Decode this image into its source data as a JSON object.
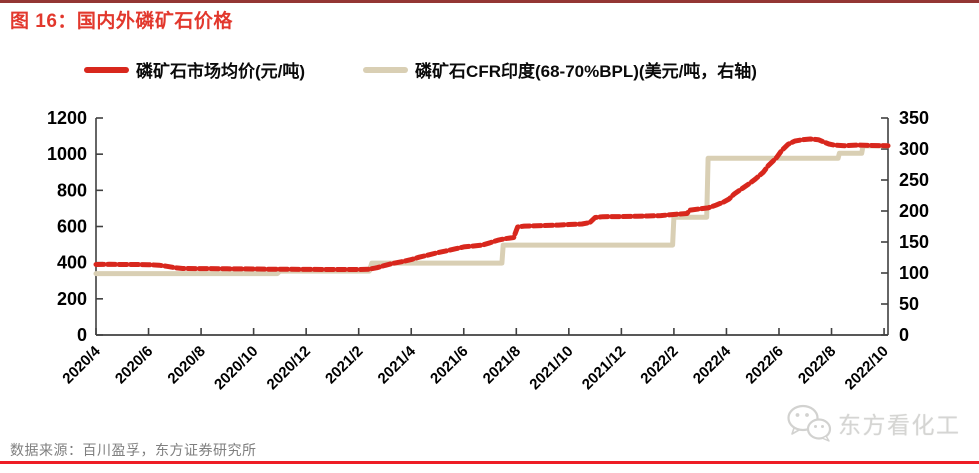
{
  "page": {
    "source": "数据来源：百川盈孚，东方证券研究所",
    "watermark_text": "东方看化工"
  },
  "colors": {
    "title_red": "#e2382d",
    "border_top": "#943634",
    "border_bottom": "#ee1c25",
    "series_red": "#d8271d",
    "series_beige": "#d9cfb4",
    "axis_line": "#404040",
    "axis_text": "#000000",
    "source_gray": "#7f7f7f",
    "watermark_gray": "#d5d5d3"
  },
  "chart_data": {
    "type": "line",
    "title": "图 16：国内外磷矿石价格",
    "legend_position": "top",
    "grid": false,
    "x_unit": "months_since_2020_04",
    "x_axis": {
      "range": [
        0,
        30.15
      ],
      "tick_months": [
        0,
        2,
        4,
        6,
        8,
        10,
        12,
        14,
        16,
        18,
        20,
        22,
        24,
        26,
        28,
        30
      ],
      "tick_labels": [
        "2020/4",
        "2020/6",
        "2020/8",
        "2020/10",
        "2020/12",
        "2021/2",
        "2021/4",
        "2021/6",
        "2021/8",
        "2021/10",
        "2021/12",
        "2022/2",
        "2022/4",
        "2022/6",
        "2022/8",
        "2022/10"
      ]
    },
    "left_axis": {
      "range": [
        0,
        1200
      ],
      "ticks": [
        0,
        200,
        400,
        600,
        800,
        1000,
        1200
      ]
    },
    "right_axis": {
      "range": [
        0,
        350
      ],
      "ticks": [
        0,
        50,
        100,
        150,
        200,
        250,
        300,
        350
      ]
    },
    "series": [
      {
        "name": "磷矿石市场均价(元/吨)",
        "axis": "left",
        "color": "#d8271d",
        "style": "dense-dots",
        "dash": "8 3.5",
        "width": 5,
        "points": [
          [
            0,
            390
          ],
          [
            0.5,
            391
          ],
          [
            1,
            390
          ],
          [
            1.5,
            390
          ],
          [
            2,
            389
          ],
          [
            2.4,
            386
          ],
          [
            2.7,
            380
          ],
          [
            3,
            372
          ],
          [
            3.3,
            368
          ],
          [
            4,
            367
          ],
          [
            5,
            366
          ],
          [
            6,
            365
          ],
          [
            6.5,
            364
          ],
          [
            7,
            364
          ],
          [
            8,
            363
          ],
          [
            9,
            362
          ],
          [
            10,
            362
          ],
          [
            10.4,
            364
          ],
          [
            10.7,
            372
          ],
          [
            11,
            385
          ],
          [
            11.3,
            396
          ],
          [
            11.7,
            407
          ],
          [
            12,
            417
          ],
          [
            12.3,
            430
          ],
          [
            12.7,
            444
          ],
          [
            13,
            455
          ],
          [
            13.3,
            464
          ],
          [
            13.7,
            477
          ],
          [
            14,
            487
          ],
          [
            14.3,
            491
          ],
          [
            14.7,
            497
          ],
          [
            15,
            510
          ],
          [
            15.3,
            524
          ],
          [
            15.6,
            533
          ],
          [
            15.9,
            539
          ],
          [
            16.05,
            597
          ],
          [
            16.3,
            602
          ],
          [
            17,
            605
          ],
          [
            17.6,
            608
          ],
          [
            18,
            611
          ],
          [
            18.5,
            614
          ],
          [
            18.8,
            622
          ],
          [
            19,
            650
          ],
          [
            19.3,
            654
          ],
          [
            20,
            655
          ],
          [
            20.6,
            657
          ],
          [
            21,
            658
          ],
          [
            21.5,
            660
          ],
          [
            21.8,
            664
          ],
          [
            22.1,
            668
          ],
          [
            22.5,
            672
          ],
          [
            22.6,
            690
          ],
          [
            23,
            698
          ],
          [
            23.3,
            703
          ],
          [
            23.6,
            718
          ],
          [
            23.9,
            736
          ],
          [
            24.1,
            752
          ],
          [
            24.3,
            780
          ],
          [
            24.6,
            810
          ],
          [
            24.9,
            840
          ],
          [
            25.1,
            862
          ],
          [
            25.4,
            900
          ],
          [
            25.6,
            938
          ],
          [
            25.9,
            980
          ],
          [
            26.1,
            1020
          ],
          [
            26.35,
            1055
          ],
          [
            26.6,
            1072
          ],
          [
            26.9,
            1080
          ],
          [
            27.2,
            1084
          ],
          [
            27.5,
            1080
          ],
          [
            27.7,
            1068
          ],
          [
            27.9,
            1056
          ],
          [
            28.1,
            1050
          ],
          [
            28.5,
            1047
          ],
          [
            29,
            1050
          ],
          [
            29.5,
            1048
          ],
          [
            30.15,
            1047
          ]
        ]
      },
      {
        "name": "磷矿石CFR印度(68-70%BPL)(美元/吨，右轴)",
        "axis": "right",
        "color": "#d9cfb4",
        "style": "solid-step",
        "width": 5,
        "points": [
          [
            0,
            99
          ],
          [
            3,
            99
          ],
          [
            6.9,
            99
          ],
          [
            7.0,
            103
          ],
          [
            9,
            103
          ],
          [
            10.4,
            103
          ],
          [
            10.5,
            116
          ],
          [
            12,
            116
          ],
          [
            15.45,
            116
          ],
          [
            15.5,
            145
          ],
          [
            18,
            145
          ],
          [
            21.95,
            145
          ],
          [
            22.0,
            190
          ],
          [
            23.25,
            190
          ],
          [
            23.3,
            285
          ],
          [
            26,
            285
          ],
          [
            28.25,
            285
          ],
          [
            28.3,
            293
          ],
          [
            29.15,
            293
          ],
          [
            29.2,
            305
          ],
          [
            30.15,
            305
          ]
        ]
      }
    ]
  }
}
